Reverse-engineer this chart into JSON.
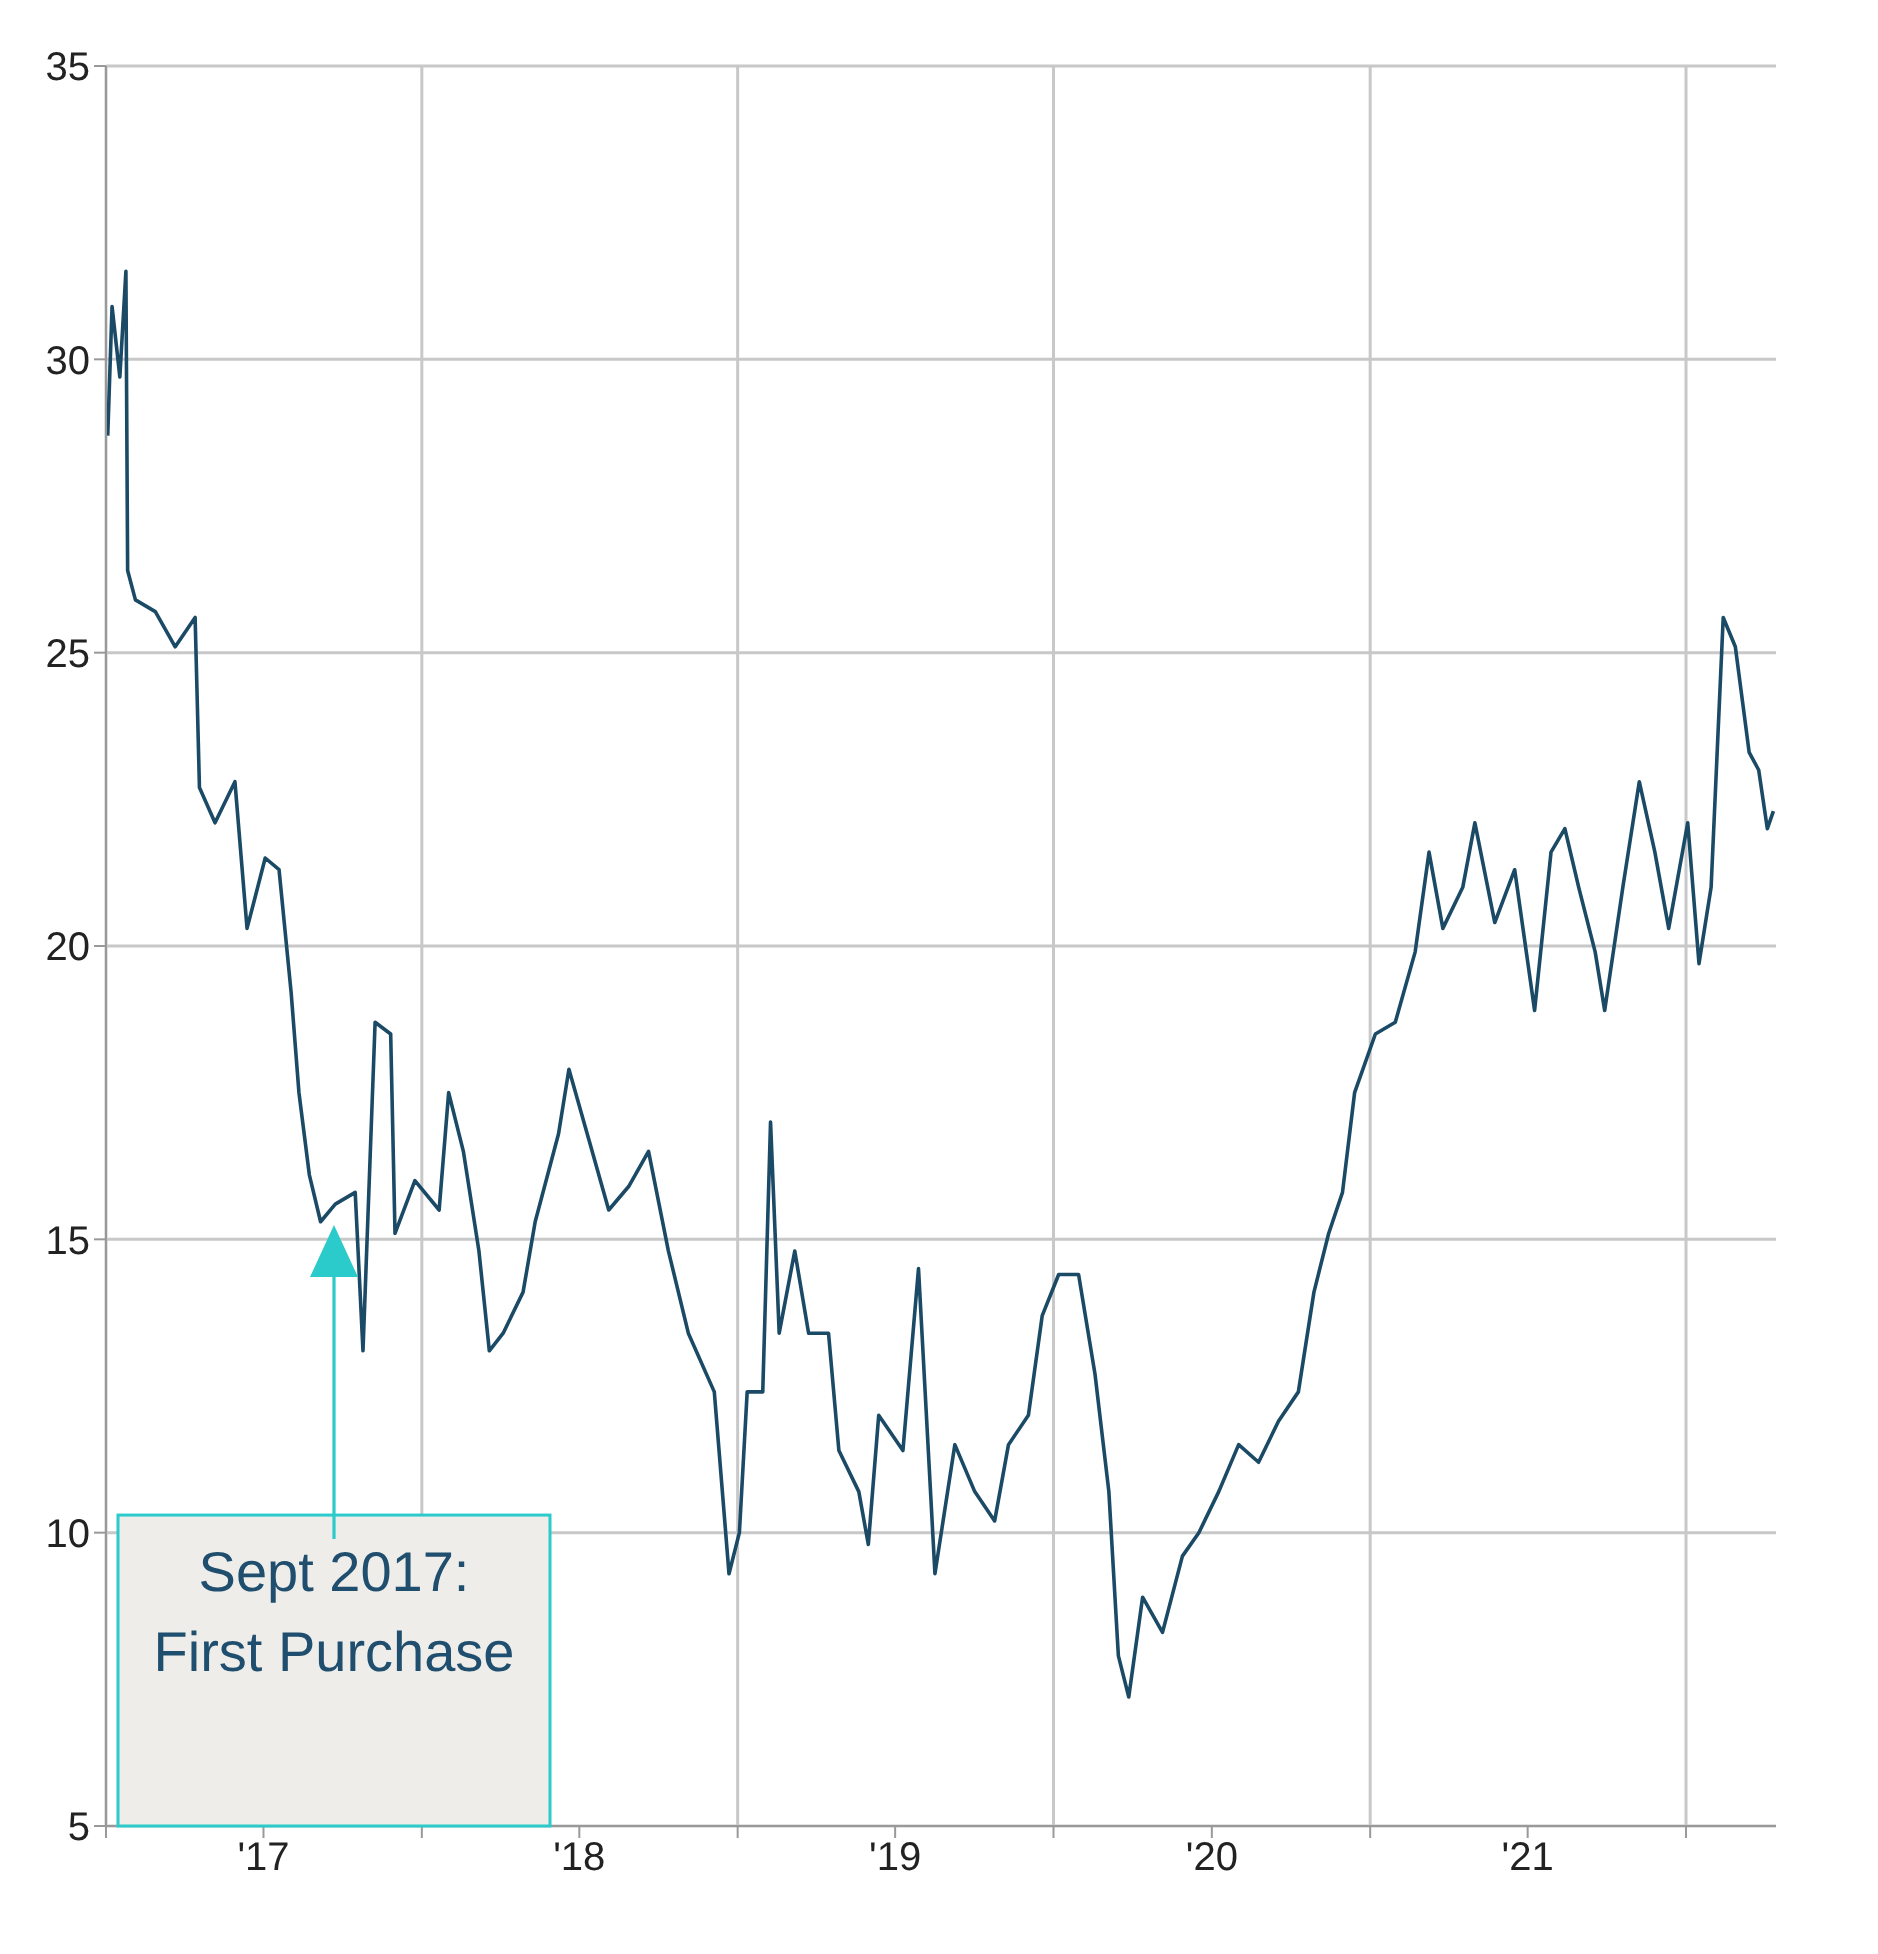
{
  "chart_data": {
    "type": "line",
    "x": [
      "2017-01-03",
      "2017-01-08",
      "2017-01-17",
      "2017-01-24",
      "2017-01-26",
      "2017-02-04",
      "2017-02-27",
      "2017-03-22",
      "2017-04-14",
      "2017-04-19",
      "2017-05-07",
      "2017-05-30",
      "2017-06-13",
      "2017-07-04",
      "2017-07-20",
      "2017-08-03",
      "2017-08-12",
      "2017-08-24",
      "2017-09-06",
      "2017-09-23",
      "2017-10-16",
      "2017-10-25",
      "2017-11-08",
      "2017-11-26",
      "2017-12-01",
      "2017-12-24",
      "2018-01-21",
      "2018-02-01",
      "2018-02-18",
      "2018-03-08",
      "2018-03-20",
      "2018-04-05",
      "2018-04-28",
      "2018-05-12",
      "2018-06-08",
      "2018-06-20",
      "2018-07-13",
      "2018-08-05",
      "2018-08-28",
      "2018-09-20",
      "2018-10-13",
      "2018-11-05",
      "2018-12-05",
      "2018-12-22",
      "2019-01-03",
      "2019-01-12",
      "2019-01-30",
      "2019-02-08",
      "2019-02-18",
      "2019-03-08",
      "2019-03-24",
      "2019-04-16",
      "2019-04-28",
      "2019-05-21",
      "2019-06-01",
      "2019-06-13",
      "2019-07-11",
      "2019-07-29",
      "2019-08-17",
      "2019-09-09",
      "2019-10-02",
      "2019-10-25",
      "2019-11-10",
      "2019-12-03",
      "2019-12-19",
      "2020-01-07",
      "2020-01-30",
      "2020-02-18",
      "2020-03-05",
      "2020-03-16",
      "2020-03-28",
      "2020-04-13",
      "2020-05-06",
      "2020-05-29",
      "2020-06-17",
      "2020-07-10",
      "2020-08-02",
      "2020-08-25",
      "2020-09-17",
      "2020-10-10",
      "2020-10-28",
      "2020-11-14",
      "2020-11-30",
      "2020-12-14",
      "2021-01-07",
      "2021-01-30",
      "2021-02-22",
      "2021-03-10",
      "2021-03-26",
      "2021-04-18",
      "2021-05-02",
      "2021-05-25",
      "2021-06-17",
      "2021-07-10",
      "2021-07-29",
      "2021-08-14",
      "2021-08-30",
      "2021-09-18",
      "2021-09-29",
      "2021-10-20",
      "2021-11-08",
      "2021-11-26",
      "2021-12-12",
      "2022-01-03",
      "2022-01-16",
      "2022-01-30",
      "2022-02-13",
      "2022-02-27",
      "2022-03-15",
      "2022-03-26",
      "2022-04-05",
      "2022-04-12"
    ],
    "series": [
      {
        "color": "#1b4a66",
        "values": [
          28.7,
          30.9,
          29.7,
          31.5,
          26.4,
          25.9,
          25.7,
          25.1,
          25.6,
          22.7,
          22.1,
          22.8,
          20.3,
          21.5,
          21.3,
          19.2,
          17.5,
          16.1,
          15.3,
          15.6,
          15.8,
          13.1,
          18.7,
          18.5,
          15.1,
          16.0,
          15.5,
          17.5,
          16.5,
          14.8,
          13.1,
          13.4,
          14.1,
          15.3,
          16.8,
          17.9,
          16.7,
          15.5,
          15.9,
          16.5,
          14.8,
          13.4,
          12.4,
          9.3,
          10.0,
          12.4,
          12.4,
          17.0,
          13.4,
          14.8,
          13.4,
          13.4,
          11.4,
          10.7,
          9.8,
          12.0,
          11.4,
          14.5,
          9.3,
          11.5,
          10.7,
          10.2,
          11.5,
          12.0,
          13.7,
          14.4,
          14.4,
          12.7,
          10.7,
          7.9,
          7.2,
          8.9,
          8.3,
          9.6,
          10.0,
          10.7,
          11.5,
          11.2,
          11.9,
          12.4,
          14.1,
          15.1,
          15.8,
          17.5,
          18.5,
          18.7,
          19.9,
          21.6,
          20.3,
          21.0,
          22.1,
          20.4,
          21.3,
          18.9,
          21.6,
          22.0,
          21.0,
          19.9,
          18.9,
          21.0,
          22.8,
          21.6,
          20.3,
          22.1,
          19.7,
          21.0,
          25.6,
          25.1,
          23.3,
          23.0,
          22.0,
          22.3
        ]
      }
    ],
    "xlim": [
      "2017-01-01",
      "2022-04-15"
    ],
    "xticks": [
      {
        "value": "2017-01-01",
        "label": null
      },
      {
        "value": "2017-07-02",
        "label": "'17"
      },
      {
        "value": "2018-01-01",
        "label": null
      },
      {
        "value": "2018-07-02",
        "label": "'18"
      },
      {
        "value": "2019-01-01",
        "label": null
      },
      {
        "value": "2019-07-02",
        "label": "'19"
      },
      {
        "value": "2020-01-01",
        "label": null
      },
      {
        "value": "2020-07-02",
        "label": "'20"
      },
      {
        "value": "2021-01-01",
        "label": null
      },
      {
        "value": "2021-07-02",
        "label": "'21"
      },
      {
        "value": "2022-01-01",
        "label": null
      }
    ],
    "ylim": [
      5,
      35
    ],
    "yticks": [
      5,
      10,
      15,
      20,
      25,
      30,
      35
    ],
    "grid": true,
    "legend": false,
    "marker": "none",
    "line_style": "solid",
    "annotations": [
      "Sept 2017: First Purchase"
    ]
  }
}
